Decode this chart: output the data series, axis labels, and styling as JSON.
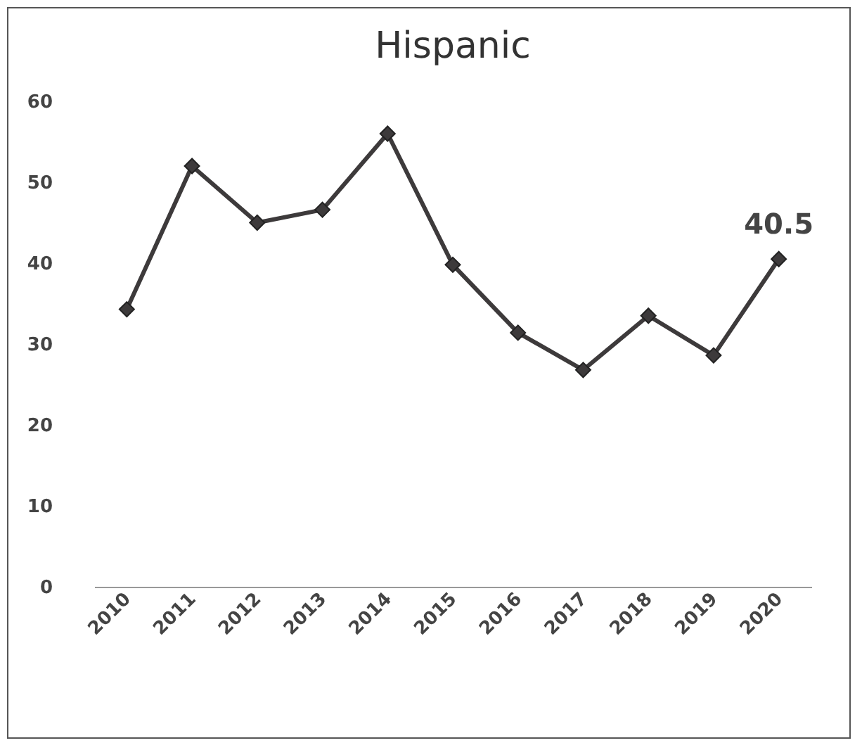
{
  "chart_data": {
    "type": "line",
    "title": "Hispanic",
    "categories": [
      "2010",
      "2011",
      "2012",
      "2013",
      "2014",
      "2015",
      "2016",
      "2017",
      "2018",
      "2019",
      "2020"
    ],
    "series": [
      {
        "color": "#3d3a3b",
        "values": [
          34.3,
          52,
          45,
          46.6,
          56,
          39.8,
          31.4,
          26.8,
          33.5,
          28.6,
          40.5
        ],
        "value_labels": [
          null,
          null,
          null,
          null,
          null,
          null,
          null,
          null,
          null,
          null,
          "40.5"
        ]
      }
    ],
    "ylim": [
      0,
      60
    ],
    "yticks": [
      0,
      10,
      20,
      30,
      40,
      50,
      60
    ],
    "grid": false,
    "marker": "diamond",
    "line_style": "solid"
  }
}
